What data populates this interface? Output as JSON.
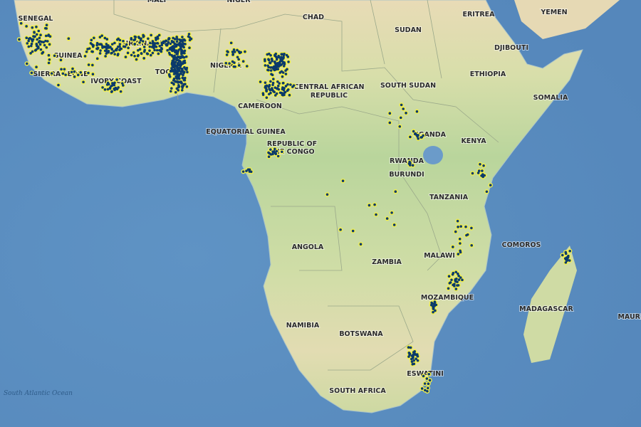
{
  "map": {
    "colors": {
      "ocean": "#5b8fc0",
      "land_north": "#e8dbb6",
      "land_central": "#c3d9a0",
      "border": "#9aa88a",
      "point_fill": "#0b3a6b",
      "point_halo": "#f2ef4a"
    },
    "ocean_label": "South Atlantic Ocean",
    "countries": [
      {
        "id": "mali",
        "label": "MALI"
      },
      {
        "id": "niger",
        "label": "NIGER"
      },
      {
        "id": "chad",
        "label": "CHAD"
      },
      {
        "id": "sudan",
        "label": "SUDAN"
      },
      {
        "id": "eritrea",
        "label": "ERITREA"
      },
      {
        "id": "yemen",
        "label": "YEMEN"
      },
      {
        "id": "djibouti",
        "label": "DJIBOUTI"
      },
      {
        "id": "ethiopia",
        "label": "ETHIOPIA"
      },
      {
        "id": "somalia",
        "label": "SOMALIA"
      },
      {
        "id": "senegal",
        "label": "SENEGAL"
      },
      {
        "id": "guinea",
        "label": "GUINEA"
      },
      {
        "id": "sierra-leone",
        "label": "SIERRA LEONE"
      },
      {
        "id": "burkina-faso",
        "label": "BURKINA FASO"
      },
      {
        "id": "ivory-coast",
        "label": "IVORY COAST"
      },
      {
        "id": "togo",
        "label": "TOGO"
      },
      {
        "id": "nigeria",
        "label": "NIGERIA"
      },
      {
        "id": "cameroon",
        "label": "CAMEROON"
      },
      {
        "id": "car-1",
        "label": "CENTRAL AFRICAN"
      },
      {
        "id": "car-2",
        "label": "REPUBLIC"
      },
      {
        "id": "south-sudan",
        "label": "SOUTH SUDAN"
      },
      {
        "id": "equatorial-guinea",
        "label": "EQUATORIAL GUINEA"
      },
      {
        "id": "congo-1",
        "label": "REPUBLIC OF"
      },
      {
        "id": "congo-2",
        "label": "THE CONGO"
      },
      {
        "id": "uganda",
        "label": "UGANDA"
      },
      {
        "id": "kenya",
        "label": "KENYA"
      },
      {
        "id": "rwanda",
        "label": "RWANDA"
      },
      {
        "id": "burundi",
        "label": "BURUNDI"
      },
      {
        "id": "tanzania",
        "label": "TANZANIA"
      },
      {
        "id": "angola",
        "label": "ANGOLA"
      },
      {
        "id": "zambia",
        "label": "ZAMBIA"
      },
      {
        "id": "malawi",
        "label": "MALAWI"
      },
      {
        "id": "comoros",
        "label": "COMOROS"
      },
      {
        "id": "madagascar",
        "label": "MADAGASCAR"
      },
      {
        "id": "mozambique",
        "label": "MOZAMBIQUE"
      },
      {
        "id": "namibia",
        "label": "NAMIBIA"
      },
      {
        "id": "botswana",
        "label": "BOTSWANA"
      },
      {
        "id": "eswatini",
        "label": "ESWATINI"
      },
      {
        "id": "south-africa",
        "label": "SOUTH AFRICA"
      },
      {
        "id": "mauritius",
        "label": "MAURI"
      }
    ]
  }
}
